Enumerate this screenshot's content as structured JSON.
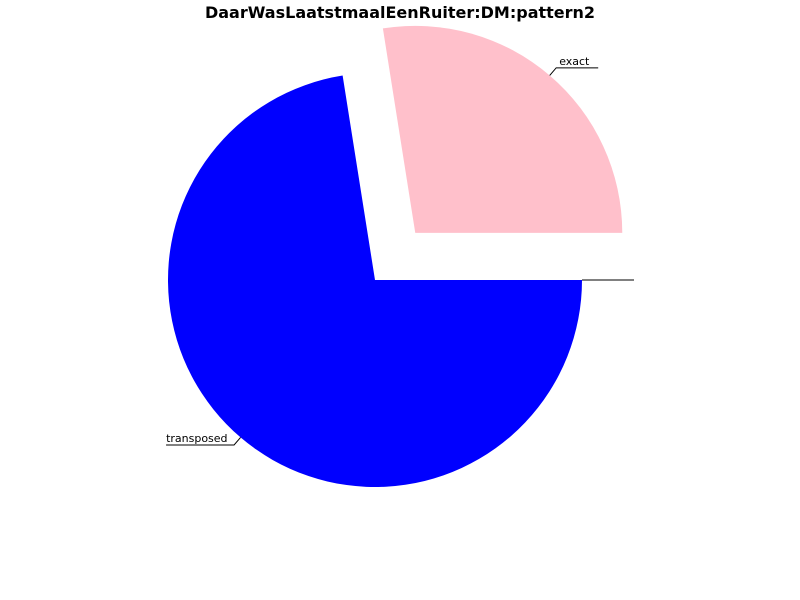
{
  "chart_data": {
    "type": "pie",
    "title": "DaarWasLaatstmaalEenRuiter:DM:pattern2",
    "start_angle_deg": 0,
    "direction": "clockwise",
    "slices": [
      {
        "label": "transposed",
        "value": 72.5,
        "color": "#0000ff",
        "exploded": false
      },
      {
        "label": "exact",
        "value": 27.5,
        "color": "#ffc0cb",
        "exploded": true
      },
      {
        "label": "",
        "value": 0,
        "color": "#ffffff",
        "exploded": false
      }
    ]
  }
}
